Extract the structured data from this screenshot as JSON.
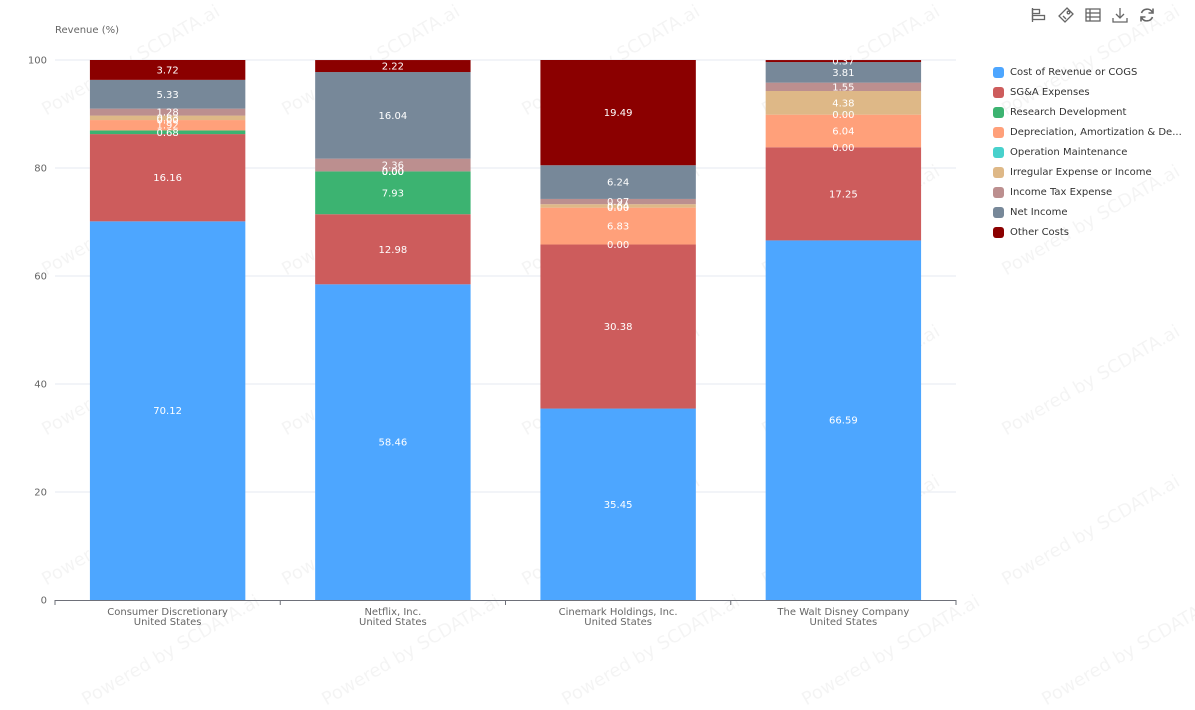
{
  "toolbox": {
    "icons": [
      "bar-sort-icon",
      "tag-icon",
      "data-table-icon",
      "download-icon",
      "refresh-icon"
    ]
  },
  "watermark_text": "Powered by SCDATA.ai",
  "chart_data": {
    "type": "bar",
    "stacked": true,
    "title": "",
    "ylabel": "Revenue (%)",
    "xlabel": "",
    "ylim": [
      0,
      100
    ],
    "yticks": [
      0,
      20,
      40,
      60,
      80,
      100
    ],
    "grid": true,
    "legend_position": "right",
    "categories": [
      [
        "Consumer Discretionary",
        "United States"
      ],
      [
        "Netflix, Inc.",
        "United States"
      ],
      [
        "Cinemark Holdings, Inc.",
        "United States"
      ],
      [
        "The Walt Disney Company",
        "United States"
      ]
    ],
    "series": [
      {
        "name": "Cost of Revenue or COGS",
        "legend_label": "Cost of Revenue or COGS",
        "color": "#4da6ff",
        "values": [
          70.12,
          58.46,
          35.45,
          66.59
        ]
      },
      {
        "name": "SG&A Expenses",
        "legend_label": "SG&A Expenses",
        "color": "#cd5c5c",
        "values": [
          16.16,
          12.98,
          30.38,
          17.25
        ]
      },
      {
        "name": "Research Development",
        "legend_label": "Research Development",
        "color": "#3cb371",
        "values": [
          0.68,
          7.93,
          0.0,
          0.0
        ]
      },
      {
        "name": "Depreciation, Amortization & Depletion",
        "legend_label": "Depreciation, Amortization & De...",
        "color": "#ffa07a",
        "values": [
          1.92,
          0.0,
          6.83,
          6.04
        ]
      },
      {
        "name": "Operation Maintenance",
        "legend_label": "Operation Maintenance",
        "color": "#48d1cc",
        "values": [
          0.0,
          0.0,
          0.0,
          0.0
        ]
      },
      {
        "name": "Irregular Expense or Income",
        "legend_label": "Irregular Expense or Income",
        "color": "#deb887",
        "values": [
          0.83,
          0.0,
          0.64,
          4.38
        ]
      },
      {
        "name": "Income Tax Expense",
        "legend_label": "Income Tax Expense",
        "color": "#bc8f8f",
        "values": [
          1.28,
          2.36,
          0.97,
          1.55
        ]
      },
      {
        "name": "Net Income",
        "legend_label": "Net Income",
        "color": "#778899",
        "values": [
          5.33,
          16.04,
          6.24,
          3.81
        ]
      },
      {
        "name": "Other Costs",
        "legend_label": "Other Costs",
        "color": "#8b0000",
        "values": [
          3.72,
          2.22,
          19.49,
          0.37
        ]
      }
    ]
  }
}
